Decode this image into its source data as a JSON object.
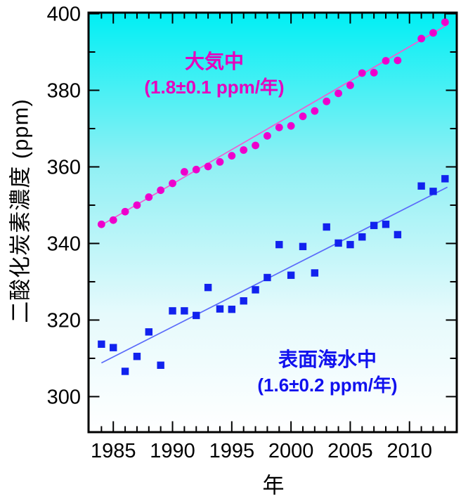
{
  "chart_data": {
    "type": "scatter",
    "title": "",
    "xlabel": "年",
    "ylabel": "二酸化炭素濃度 (ppm)",
    "xlim": [
      1983,
      2013.9
    ],
    "ylim": [
      291,
      400
    ],
    "x_major_ticks": [
      1985,
      1990,
      1995,
      2000,
      2005,
      2010
    ],
    "x_tick_labels": [
      "1985",
      "1990",
      "1995",
      "2000",
      "2005",
      "2010"
    ],
    "x_minor_tick_years": [
      1984,
      2013
    ],
    "y_major_ticks": [
      300,
      320,
      340,
      360,
      380,
      400
    ],
    "y_tick_labels": [
      "300",
      "320",
      "340",
      "360",
      "380",
      "400"
    ],
    "y_minor_ticks": [
      310,
      330,
      350,
      370,
      390
    ],
    "grid": false,
    "legend_position": "in-plot annotations",
    "axis_color": "#000000",
    "background_gradient": [
      "#00eff4",
      "#8ff0f4",
      "#e6fafc",
      "#ffffff"
    ],
    "background_gradient_offsets": [
      0,
      0.36,
      0.72,
      1
    ],
    "series": [
      {
        "name": "大気中",
        "annotation_lines": [
          "大気中",
          "(1.8±0.1 ppm/年)"
        ],
        "trend_rate": "1.8±0.1 ppm/年",
        "marker": "circle",
        "color": "#ee00cc",
        "text_color": "#e600bd",
        "line_color": "#f25ad2",
        "trend": {
          "x1": 1984,
          "y1": 344.8,
          "x2": 2013.3,
          "y2": 397.3
        },
        "x": [
          1984,
          1985,
          1986,
          1987,
          1988,
          1989,
          1990,
          1991,
          1992,
          1993,
          1994,
          1995,
          1996,
          1997,
          1998,
          1999,
          2000,
          2001,
          2002,
          2003,
          2004,
          2005,
          2006,
          2007,
          2008,
          2009,
          2011,
          2012,
          2013
        ],
        "y": [
          345.0,
          346.1,
          348.3,
          350.0,
          352.1,
          353.9,
          355.7,
          358.7,
          359.3,
          360.1,
          361.3,
          362.9,
          364.4,
          365.6,
          368.1,
          370.3,
          370.7,
          373.2,
          374.6,
          377.1,
          379.2,
          381.3,
          384.5,
          384.6,
          387.7,
          387.8,
          393.5,
          395.0,
          397.8
        ]
      },
      {
        "name": "表面海水中",
        "annotation_lines": [
          "表面海水中",
          "(1.6±0.2 ppm/年)"
        ],
        "trend_rate": "1.6±0.2 ppm/年",
        "marker": "square",
        "color": "#1122ee",
        "text_color": "#1111ee",
        "line_color": "#5b6bfa",
        "trend": {
          "x1": 1984,
          "y1": 308.8,
          "x2": 2013.2,
          "y2": 354.7
        },
        "x": [
          1984,
          1985,
          1986,
          1987,
          1988,
          1989,
          1990,
          1991,
          1992,
          1993,
          1994,
          1995,
          1996,
          1997,
          1998,
          1999,
          2000,
          2001,
          2002,
          2003,
          2004,
          2005,
          2006,
          2007,
          2008,
          2009,
          2011,
          2012,
          2013
        ],
        "y": [
          313.7,
          312.8,
          306.6,
          310.5,
          316.9,
          308.2,
          322.4,
          322.4,
          321.2,
          328.5,
          322.9,
          322.8,
          325.0,
          327.9,
          331.1,
          339.7,
          331.7,
          339.2,
          332.3,
          344.3,
          340.1,
          339.7,
          341.7,
          344.7,
          345.0,
          342.3,
          355.0,
          353.6,
          356.9
        ]
      }
    ]
  }
}
